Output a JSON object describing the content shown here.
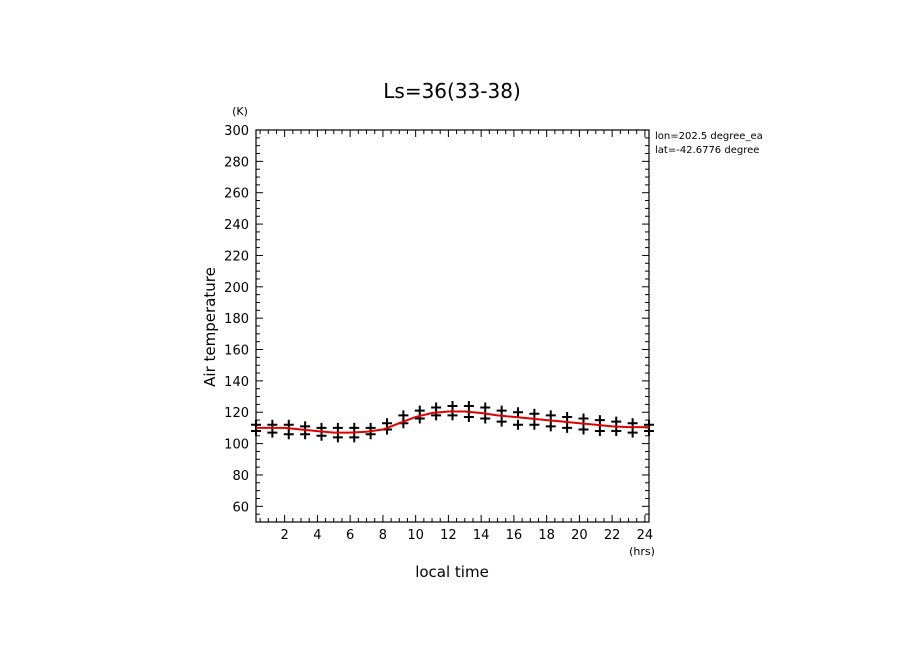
{
  "chart_data": {
    "type": "scatter",
    "title": "Ls=36(33-38)",
    "xlabel": "local time",
    "ylabel": "Air temperature",
    "x_unit": "(hrs)",
    "y_unit": "(K)",
    "xlim": [
      0.25,
      24.25
    ],
    "ylim": [
      50,
      300
    ],
    "x_ticks": [
      2,
      4,
      6,
      8,
      10,
      12,
      14,
      16,
      18,
      20,
      22,
      24
    ],
    "y_ticks": [
      60,
      80,
      100,
      120,
      140,
      160,
      180,
      200,
      220,
      240,
      260,
      280,
      300
    ],
    "annotations": [
      "lon=202.5 degree_ea",
      "lat=-42.6776 degree"
    ],
    "observations": {
      "name": "",
      "marker": "plus",
      "color": "#000000",
      "x": [
        0.25,
        1.25,
        2.25,
        3.25,
        4.25,
        5.25,
        6.25,
        7.25,
        8.25,
        9.25,
        10.25,
        11.25,
        12.25,
        13.25,
        14.25,
        15.25,
        16.25,
        17.25,
        18.25,
        19.25,
        20.25,
        21.25,
        22.25,
        23.25,
        24.25
      ],
      "y_high": [
        112,
        112,
        112,
        111,
        110,
        110,
        110,
        110,
        113,
        118,
        121,
        123,
        124,
        124,
        123,
        121,
        120,
        119,
        118,
        117,
        116,
        115,
        114,
        113,
        112
      ],
      "y_low": [
        108,
        107,
        106,
        106,
        105,
        104,
        104,
        106,
        109,
        113,
        116,
        118,
        118,
        117,
        116,
        114,
        112,
        112,
        111,
        110,
        109,
        108,
        108,
        107,
        108
      ]
    },
    "model": {
      "name": "",
      "color": "#e00000",
      "x": [
        0.25,
        1,
        2,
        3,
        4,
        5,
        6,
        7,
        8,
        9,
        10,
        11,
        12,
        13,
        14,
        15,
        16,
        17,
        18,
        19,
        20,
        21,
        22,
        23,
        24.25
      ],
      "y": [
        110,
        110,
        110,
        109,
        108,
        107,
        107,
        107.5,
        109,
        113,
        117,
        119.5,
        120.5,
        120.5,
        119.5,
        118,
        117,
        116,
        115,
        114,
        113,
        112,
        111,
        110.5,
        110.5
      ]
    }
  }
}
